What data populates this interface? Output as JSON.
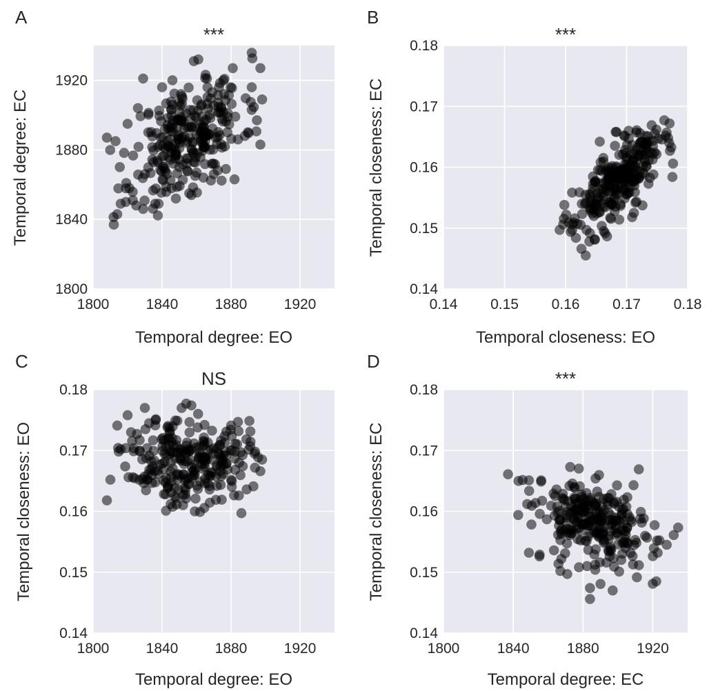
{
  "chart_data": [
    {
      "panel": "A",
      "type": "scatter",
      "title": "***",
      "xlabel": "Temporal degree: EO",
      "ylabel": "Temporal degree: EC",
      "xlim": [
        1800,
        1940
      ],
      "ylim": [
        1800,
        1940
      ],
      "xticks": [
        "1800",
        "1840",
        "1880",
        "1920"
      ],
      "yticks": [
        "1800",
        "1840",
        "1880",
        "1920"
      ],
      "grid": true,
      "point_color": "#000000",
      "center": [
        1855,
        1888
      ],
      "spread": [
        16,
        17
      ],
      "corr": 0.45,
      "n": 260,
      "seed": 11,
      "points": [
        [
          1802,
          1875
        ],
        [
          1808,
          1887
        ],
        [
          1812,
          1837
        ],
        [
          1814,
          1843
        ],
        [
          1816,
          1849
        ],
        [
          1819,
          1850
        ],
        [
          1821,
          1858
        ],
        [
          1823,
          1851
        ],
        [
          1825,
          1848
        ],
        [
          1829,
          1846
        ],
        [
          1830,
          1866
        ],
        [
          1836,
          1849
        ],
        [
          1838,
          1849
        ],
        [
          1829,
          1921
        ],
        [
          1861,
          1932
        ],
        [
          1866,
          1921
        ],
        [
          1873,
          1916
        ],
        [
          1881,
          1927
        ],
        [
          1897,
          1927
        ],
        [
          1892,
          1916
        ],
        [
          1898,
          1909
        ],
        [
          1897,
          1883
        ],
        [
          1892,
          1903
        ],
        [
          1895,
          1897
        ],
        [
          1848,
          1852
        ],
        [
          1857,
          1854
        ],
        [
          1864,
          1864
        ],
        [
          1870,
          1866
        ],
        [
          1877,
          1869
        ],
        [
          1882,
          1863
        ],
        [
          1884,
          1886
        ],
        [
          1888,
          1888
        ],
        [
          1840,
          1916
        ],
        [
          1851,
          1912
        ],
        [
          1846,
          1920
        ],
        [
          1876,
          1912
        ],
        [
          1813,
          1885
        ],
        [
          1820,
          1895
        ],
        [
          1826,
          1904
        ]
      ]
    },
    {
      "panel": "B",
      "type": "scatter",
      "title": "***",
      "xlabel": "Temporal closeness: EO",
      "ylabel": "Temporal closeness: EC",
      "xlim": [
        0.14,
        0.18
      ],
      "ylim": [
        0.14,
        0.18
      ],
      "xticks": [
        "0.14",
        "0.15",
        "0.16",
        "0.17",
        "0.18"
      ],
      "yticks": [
        "0.14",
        "0.15",
        "0.16",
        "0.17",
        "0.18"
      ],
      "grid": true,
      "point_color": "#000000",
      "center": [
        0.1685,
        0.1578
      ],
      "spread": [
        0.0035,
        0.0038
      ],
      "corr": 0.72,
      "n": 260,
      "seed": 23,
      "points": [
        [
          0.1598,
          0.1538
        ],
        [
          0.1601,
          0.1522
        ],
        [
          0.1605,
          0.1509
        ],
        [
          0.1611,
          0.1497
        ],
        [
          0.1617,
          0.1484
        ],
        [
          0.1626,
          0.1466
        ],
        [
          0.1633,
          0.1455
        ],
        [
          0.1639,
          0.1478
        ],
        [
          0.1648,
          0.1481
        ],
        [
          0.1741,
          0.1669
        ],
        [
          0.1735,
          0.1651
        ],
        [
          0.1752,
          0.1647
        ],
        [
          0.1768,
          0.1648
        ],
        [
          0.1771,
          0.1627
        ],
        [
          0.1776,
          0.1606
        ],
        [
          0.1775,
          0.1584
        ],
        [
          0.1744,
          0.1588
        ],
        [
          0.1712,
          0.1525
        ],
        [
          0.1709,
          0.1518
        ],
        [
          0.1682,
          0.1658
        ],
        [
          0.1697,
          0.1651
        ],
        [
          0.1656,
          0.1642
        ]
      ]
    },
    {
      "panel": "C",
      "type": "scatter",
      "title": "NS",
      "xlabel": "Temporal degree: EO",
      "ylabel": "Temporal closeness: EO",
      "xlim": [
        1800,
        1940
      ],
      "ylim": [
        0.14,
        0.18
      ],
      "xticks": [
        "1800",
        "1840",
        "1880",
        "1920"
      ],
      "yticks": [
        "0.14",
        "0.15",
        "0.16",
        "0.17",
        "0.18"
      ],
      "grid": true,
      "point_color": "#000000",
      "center": [
        1855,
        0.1685
      ],
      "spread": [
        17,
        0.0035
      ],
      "corr": 0.02,
      "n": 260,
      "seed": 37,
      "points": [
        [
          1802,
          0.17
        ],
        [
          1808,
          0.1618
        ],
        [
          1814,
          0.1741
        ],
        [
          1820,
          0.1758
        ],
        [
          1822,
          0.173
        ],
        [
          1830,
          0.177
        ],
        [
          1854,
          0.1777
        ],
        [
          1857,
          0.1774
        ],
        [
          1886,
          0.1597
        ],
        [
          1898,
          0.1685
        ],
        [
          1897,
          0.1666
        ],
        [
          1894,
          0.1698
        ],
        [
          1884,
          0.1747
        ],
        [
          1880,
          0.1741
        ],
        [
          1859,
          0.16
        ],
        [
          1862,
          0.1599
        ],
        [
          1845,
          0.1612
        ],
        [
          1810,
          0.1652
        ],
        [
          1816,
          0.1702
        ]
      ]
    },
    {
      "panel": "D",
      "type": "scatter",
      "title": "***",
      "xlabel": "Temporal degree: EC",
      "ylabel": "Temporal closeness: EC",
      "xlim": [
        1800,
        1940
      ],
      "ylim": [
        0.14,
        0.18
      ],
      "xticks": [
        "1800",
        "1840",
        "1880",
        "1920"
      ],
      "yticks": [
        "0.14",
        "0.15",
        "0.16",
        "0.17",
        "0.18"
      ],
      "grid": true,
      "point_color": "#000000",
      "center": [
        1888,
        0.1578
      ],
      "spread": [
        17,
        0.0036
      ],
      "corr": -0.35,
      "n": 260,
      "seed": 53,
      "points": [
        [
          1837,
          0.1661
        ],
        [
          1843,
          0.165
        ],
        [
          1849,
          0.1651
        ],
        [
          1856,
          0.1651
        ],
        [
          1856,
          0.1649
        ],
        [
          1848,
          0.1612
        ],
        [
          1849,
          0.1532
        ],
        [
          1855,
          0.1526
        ],
        [
          1867,
          0.1502
        ],
        [
          1871,
          0.1497
        ],
        [
          1884,
          0.1474
        ],
        [
          1884,
          0.1456
        ],
        [
          1912,
          0.1669
        ],
        [
          1909,
          0.1643
        ],
        [
          1932,
          0.1561
        ],
        [
          1928,
          0.1545
        ],
        [
          1922,
          0.1485
        ],
        [
          1920,
          0.1481
        ],
        [
          1897,
          0.147
        ],
        [
          1887,
          0.1504
        ]
      ]
    }
  ]
}
